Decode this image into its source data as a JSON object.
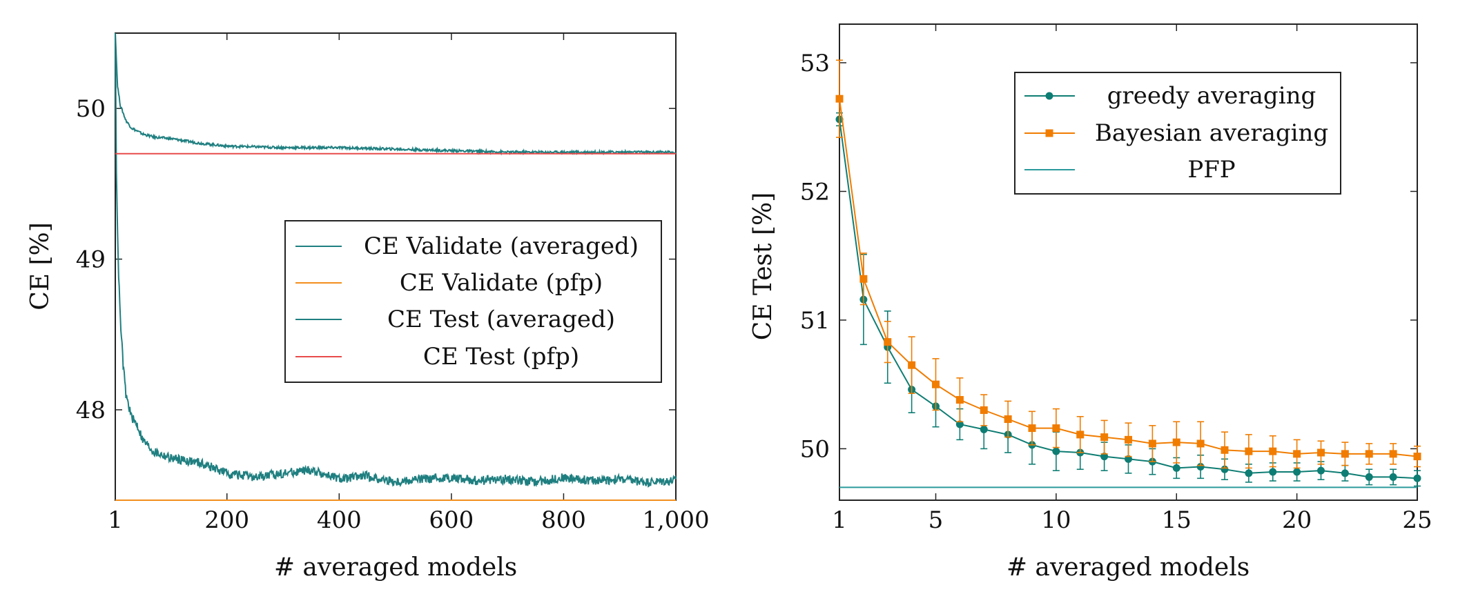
{
  "chart_data": [
    {
      "type": "line",
      "xlabel": "# averaged models",
      "ylabel": "CE [%]",
      "xlim": [
        1,
        1000
      ],
      "ylim": [
        47.4,
        50.5
      ],
      "xticks": [
        1,
        200,
        400,
        600,
        800,
        1000
      ],
      "xtick_labels": [
        "1",
        "200",
        "400",
        "600",
        "800",
        "1,000"
      ],
      "yticks": [
        48,
        49,
        50
      ],
      "ytick_labels": [
        "48",
        "49",
        "50"
      ],
      "legend_position": "center-right",
      "grid": false,
      "series": [
        {
          "name": "CE Validate (averaged)",
          "color": "#1f7f80",
          "x": [
            1,
            5,
            10,
            20,
            30,
            40,
            50,
            70,
            100,
            150,
            200,
            300,
            400,
            500,
            600,
            700,
            800,
            900,
            1000
          ],
          "y": [
            50.5,
            50.15,
            50.02,
            49.92,
            49.87,
            49.85,
            49.83,
            49.81,
            49.8,
            49.77,
            49.75,
            49.74,
            49.74,
            49.73,
            49.72,
            49.71,
            49.71,
            49.71,
            49.71
          ]
        },
        {
          "name": "CE Validate (pfp)",
          "color": "#f28e1c",
          "x": [
            1,
            1000
          ],
          "y": [
            47.4,
            47.4
          ]
        },
        {
          "name": "CE Test (averaged)",
          "color": "#1f7f80",
          "x": [
            1,
            3,
            6,
            10,
            15,
            20,
            30,
            40,
            50,
            70,
            100,
            150,
            200,
            250,
            300,
            350,
            400,
            450,
            500,
            550,
            600,
            650,
            700,
            750,
            800,
            850,
            900,
            950,
            1000
          ],
          "y": [
            50.5,
            49.6,
            49.0,
            48.6,
            48.3,
            48.1,
            47.95,
            47.9,
            47.8,
            47.72,
            47.68,
            47.65,
            47.58,
            47.55,
            47.58,
            47.6,
            47.54,
            47.56,
            47.52,
            47.54,
            47.55,
            47.53,
            47.54,
            47.52,
            47.55,
            47.53,
            47.54,
            47.52,
            47.53
          ]
        },
        {
          "name": "CE Test (pfp)",
          "color": "#e84a4a",
          "x": [
            1,
            1000
          ],
          "y": [
            49.7,
            49.7
          ]
        }
      ]
    },
    {
      "type": "line",
      "xlabel": "# averaged models",
      "ylabel": "CE Test [%]",
      "xlim": [
        1,
        25
      ],
      "ylim": [
        49.6,
        53.3
      ],
      "xticks": [
        1,
        5,
        10,
        15,
        20,
        25
      ],
      "xtick_labels": [
        "1",
        "5",
        "10",
        "15",
        "20",
        "25"
      ],
      "yticks": [
        50,
        51,
        52,
        53
      ],
      "ytick_labels": [
        "50",
        "51",
        "52",
        "53"
      ],
      "legend_position": "top-right",
      "grid": false,
      "series": [
        {
          "name": "greedy averaging",
          "color": "#0e7d73",
          "marker": "circle",
          "x": [
            1,
            2,
            3,
            4,
            5,
            6,
            7,
            8,
            9,
            10,
            11,
            12,
            13,
            14,
            15,
            16,
            17,
            18,
            19,
            20,
            21,
            22,
            23,
            24,
            25
          ],
          "y": [
            52.56,
            51.16,
            50.79,
            50.46,
            50.33,
            50.19,
            50.15,
            50.11,
            50.03,
            49.98,
            49.97,
            49.94,
            49.92,
            49.9,
            49.85,
            49.86,
            49.84,
            49.81,
            49.82,
            49.82,
            49.83,
            49.81,
            49.78,
            49.78,
            49.77
          ],
          "err": [
            0.05,
            0.35,
            0.28,
            0.18,
            0.16,
            0.12,
            0.15,
            0.14,
            0.15,
            0.15,
            0.13,
            0.11,
            0.11,
            0.1,
            0.08,
            0.09,
            0.08,
            0.07,
            0.07,
            0.07,
            0.07,
            0.06,
            0.06,
            0.06,
            0.06
          ]
        },
        {
          "name": "Bayesian averaging",
          "color": "#f07c00",
          "marker": "square",
          "x": [
            1,
            2,
            3,
            4,
            5,
            6,
            7,
            8,
            9,
            10,
            11,
            12,
            13,
            14,
            15,
            16,
            17,
            18,
            19,
            20,
            21,
            22,
            23,
            24,
            25
          ],
          "y": [
            52.72,
            51.32,
            50.83,
            50.65,
            50.5,
            50.38,
            50.3,
            50.23,
            50.16,
            50.16,
            50.11,
            50.09,
            50.07,
            50.04,
            50.05,
            50.04,
            49.99,
            49.98,
            49.98,
            49.96,
            49.97,
            49.96,
            49.96,
            49.96,
            49.94
          ],
          "err": [
            0.3,
            0.2,
            0.16,
            0.22,
            0.2,
            0.17,
            0.12,
            0.14,
            0.13,
            0.15,
            0.14,
            0.13,
            0.13,
            0.14,
            0.16,
            0.17,
            0.14,
            0.13,
            0.12,
            0.11,
            0.09,
            0.09,
            0.08,
            0.08,
            0.08
          ]
        },
        {
          "name": "PFP",
          "color": "#2a9a9c",
          "x": [
            1,
            25
          ],
          "y": [
            49.7,
            49.7
          ]
        }
      ]
    }
  ]
}
